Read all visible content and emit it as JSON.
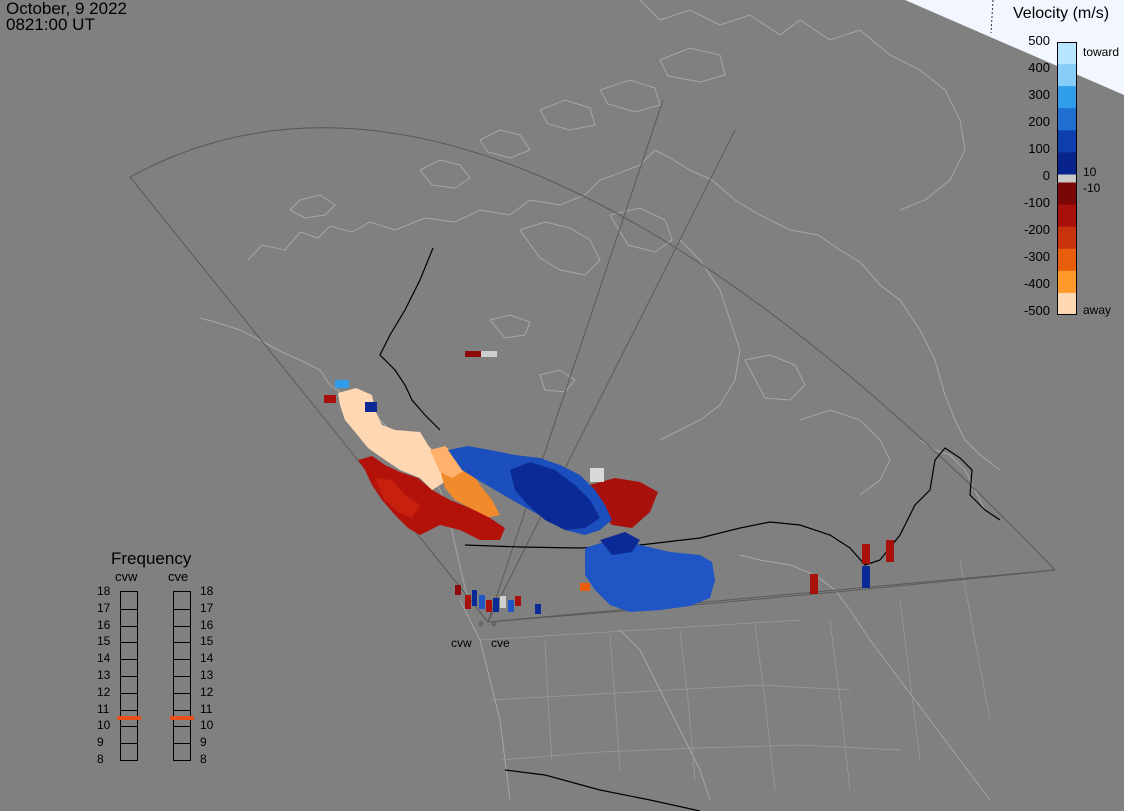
{
  "header": {
    "date": "October, 9 2022",
    "time": "0821:00 UT"
  },
  "legend": {
    "title": "Velocity (m/s)",
    "ticks": [
      "500",
      "400",
      "300",
      "200",
      "100",
      "0",
      "-100",
      "-200",
      "-300",
      "-400",
      "-500"
    ],
    "label_toward": "toward",
    "label_away": "away",
    "label_pos10": "10",
    "label_neg10": "-10",
    "colors": [
      "#b7e4ff",
      "#86cdfa",
      "#2f9de9",
      "#1f6fd1",
      "#0d3fae",
      "#08248c",
      "#7a0606",
      "#a8100b",
      "#c8320d",
      "#e85e0c",
      "#ff9a2a",
      "#ffd7b2"
    ],
    "zero_band": "#c8c8c8"
  },
  "frequency": {
    "title": "Frequency",
    "radars": [
      "cvw",
      "cve"
    ],
    "levels": [
      "18",
      "17",
      "16",
      "15",
      "14",
      "13",
      "12",
      "11",
      "10",
      "9",
      "8"
    ],
    "current_value": 10.5,
    "marker_color": "#e8501a"
  },
  "sites": {
    "cvw": "cvw",
    "cve": "cve"
  },
  "map_colors": {
    "background": "#808080",
    "coastline": "#a6a6a6",
    "border": "#000000",
    "fov": "#5a5a5a"
  }
}
